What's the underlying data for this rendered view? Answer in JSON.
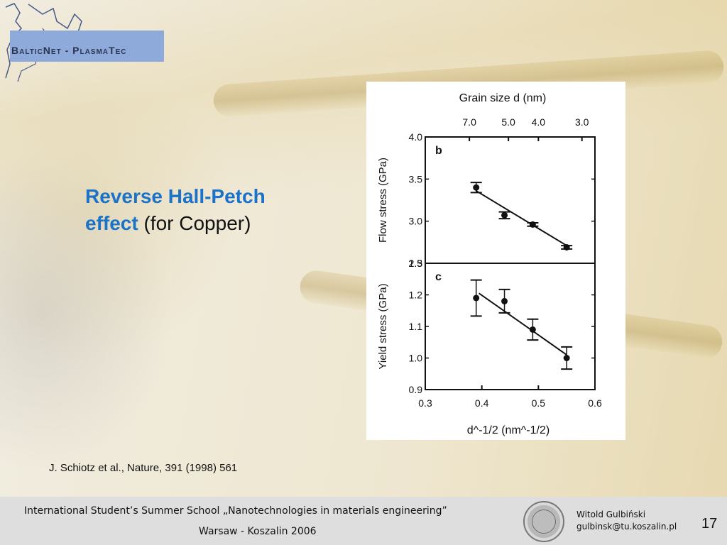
{
  "logo": {
    "text": "BalticNet - PlasmaTec"
  },
  "slide": {
    "title_bold_line1": "Reverse Hall-Petch",
    "title_bold_line2": "effect",
    "title_normal": " (for Copper)",
    "citation": "J. Schiotz et al., Nature, 391 (1998) 561"
  },
  "footer": {
    "line1": "International Student’s Summer School „Nanotechnologies in materials engineering”",
    "line2": "Warsaw - Koszalin 2006",
    "author": "Witold Gulbiński",
    "email": "gulbinsk@tu.koszalin.pl",
    "page": "17"
  },
  "chart_data": [
    {
      "type": "scatter",
      "panel": "b",
      "title": "Grain size d (nm)",
      "top_axis_label": "Grain size d (nm)",
      "top_tick_labels": [
        "7.0",
        "5.0",
        "4.0",
        "3.0"
      ],
      "top_tick_positions": [
        0.378,
        0.447,
        0.5,
        0.577
      ],
      "ylabel": "Flow stress (GPa)",
      "ylim": [
        2.5,
        4.0
      ],
      "yticks": [
        "4.0",
        "3.5",
        "3.0",
        "2.5"
      ],
      "xlim": [
        0.3,
        0.6
      ],
      "x": [
        0.39,
        0.44,
        0.49,
        0.55
      ],
      "y": [
        3.4,
        3.07,
        2.96,
        2.69
      ],
      "yerr": [
        0.06,
        0.04,
        0.02,
        0.02
      ],
      "fit_line": {
        "x": [
          0.39,
          0.555
        ],
        "y": [
          3.36,
          2.69
        ]
      }
    },
    {
      "type": "scatter",
      "panel": "c",
      "xlabel": "d^-1/2 (nm^-1/2)",
      "ylabel": "Yield stress (GPa)",
      "ylim": [
        0.9,
        1.3
      ],
      "yticks": [
        "1.3",
        "1.2",
        "1.1",
        "1.0",
        "0.9"
      ],
      "xlim": [
        0.3,
        0.6
      ],
      "xticks": [
        "0.3",
        "0.4",
        "0.5",
        "0.6"
      ],
      "x": [
        0.39,
        0.44,
        0.49,
        0.55
      ],
      "y": [
        1.19,
        1.18,
        1.09,
        1.0
      ],
      "yerr": [
        0.057,
        0.037,
        0.033,
        0.035
      ],
      "fit_line": {
        "x": [
          0.395,
          0.55
        ],
        "y": [
          1.205,
          1.01
        ]
      }
    }
  ]
}
